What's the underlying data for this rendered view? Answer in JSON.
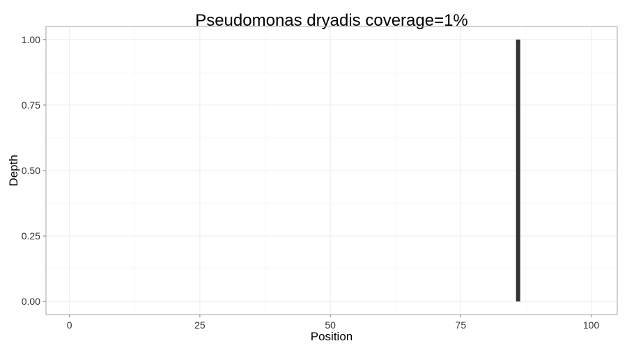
{
  "chart_data": {
    "type": "bar",
    "title": "Pseudomonas dryadis coverage=1%",
    "xlabel": "Position",
    "ylabel": "Depth",
    "xlim": [
      -4.5,
      105
    ],
    "ylim": [
      -0.05,
      1.05
    ],
    "x_ticks": [
      0,
      25,
      50,
      75,
      100
    ],
    "x_tick_labels": [
      "0",
      "25",
      "50",
      "75",
      "100"
    ],
    "y_ticks": [
      0,
      0.25,
      0.5,
      0.75,
      1
    ],
    "y_tick_labels": [
      "0.00",
      "0.25",
      "0.50",
      "0.75",
      "1.00"
    ],
    "grid": true,
    "legend": "none",
    "series": [
      {
        "points": [
          {
            "x": 86,
            "y": 1
          }
        ]
      }
    ],
    "colors": {
      "bar": "#333333",
      "panel_border": "#a6a6a6",
      "grid_major": "#ececec",
      "grid_minor": "#f7f7f7",
      "tick_mark": "#7f7f7f"
    }
  }
}
